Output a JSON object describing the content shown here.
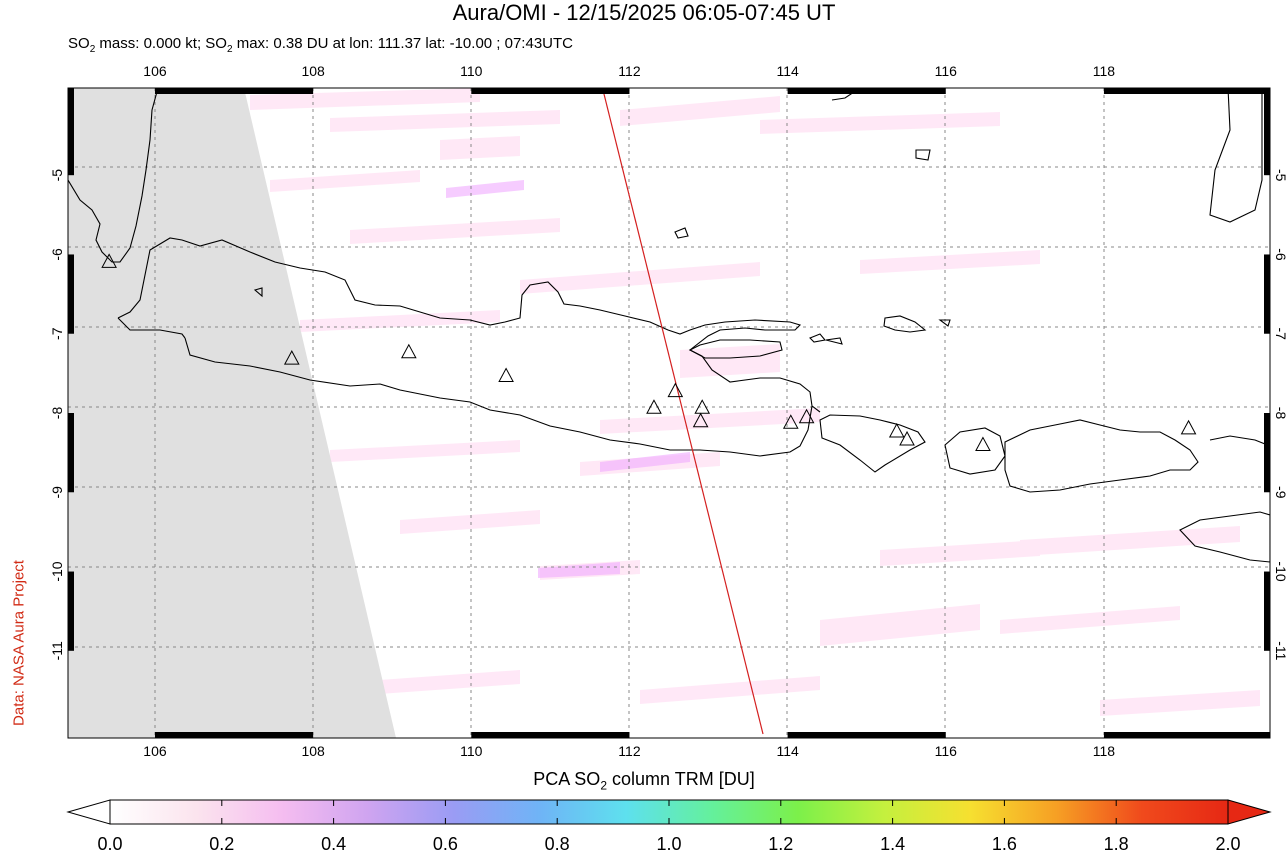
{
  "title": "Aura/OMI - 12/15/2025 06:05-07:45 UT",
  "subtitle": {
    "so2_1": "SO",
    "sub_1": "2",
    "mass_text": " mass: 0.000 kt; SO",
    "sub_2": "2",
    "rest_text": " max: 0.38 DU at lon: 111.37 lat: -10.00 ; 07:43UTC"
  },
  "credit": "Data: NASA Aura Project",
  "map": {
    "lon_ticks": [
      "106",
      "108",
      "110",
      "112",
      "114",
      "116",
      "118"
    ],
    "lat_ticks": [
      "-5",
      "-6",
      "-7",
      "-8",
      "-9",
      "-10",
      "-11"
    ],
    "lon_range": [
      104.9,
      120.1
    ],
    "lat_range": [
      -12.1,
      -3.9
    ],
    "volcano_count_label": "",
    "volcanoes": [
      {
        "lon": 105.42,
        "lat": -6.1
      },
      {
        "lon": 107.73,
        "lat": -7.32
      },
      {
        "lon": 109.21,
        "lat": -7.24
      },
      {
        "lon": 110.44,
        "lat": -7.54
      },
      {
        "lon": 112.31,
        "lat": -7.94
      },
      {
        "lon": 112.58,
        "lat": -7.73
      },
      {
        "lon": 112.92,
        "lat": -7.94
      },
      {
        "lon": 112.9,
        "lat": -8.11
      },
      {
        "lon": 114.04,
        "lat": -8.13
      },
      {
        "lon": 114.24,
        "lat": -8.06
      },
      {
        "lon": 115.38,
        "lat": -8.24
      },
      {
        "lon": 115.51,
        "lat": -8.34
      },
      {
        "lon": 116.47,
        "lat": -8.41
      },
      {
        "lon": 119.07,
        "lat": -8.2
      }
    ],
    "track_line": {
      "lon_start": 111.62,
      "lat_start": -3.92,
      "lon_end": 113.65,
      "lat_end": -11.95
    },
    "colors": {
      "no_data": "#e0e0e0",
      "coast": "#000000",
      "track": "#d42020",
      "grid": "#888888",
      "so2_low": "#ffd6f0"
    }
  },
  "colorbar": {
    "title_pre": "PCA SO",
    "title_sub": "2",
    "title_post": " column TRM [DU]",
    "labels": [
      "0.0",
      "0.2",
      "0.4",
      "0.6",
      "0.8",
      "1.0",
      "1.2",
      "1.4",
      "1.6",
      "1.8",
      "2.0"
    ],
    "stops": [
      "#ffffff",
      "#fbe4ee",
      "#f5bdf0",
      "#cfa4f0",
      "#9a9cf4",
      "#6fb4f6",
      "#5ee0ee",
      "#64f09c",
      "#7cf04a",
      "#c4f03e",
      "#f6e030",
      "#f6a024",
      "#f04a1c",
      "#e62814"
    ]
  }
}
